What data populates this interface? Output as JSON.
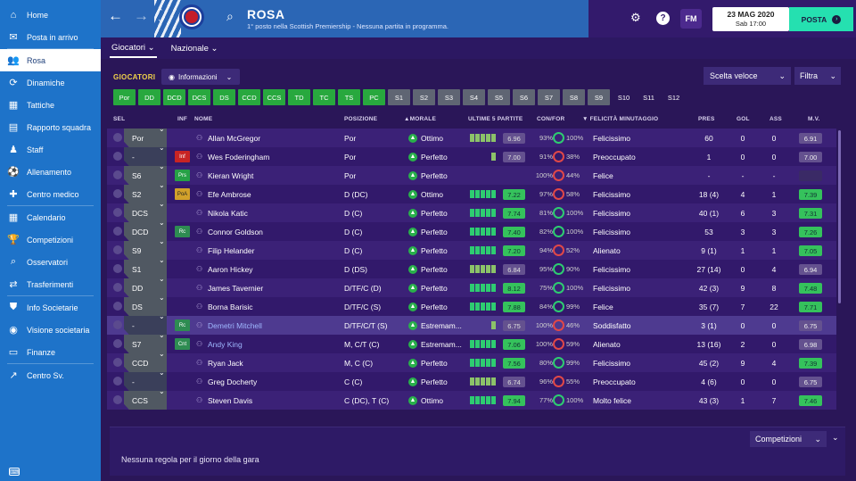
{
  "sidebar": {
    "items": [
      {
        "label": "Home",
        "icon": "home-icon",
        "glyph": "⌂"
      },
      {
        "label": "Posta in arrivo",
        "icon": "inbox-icon",
        "glyph": "✉"
      },
      {
        "label": "Rosa",
        "icon": "squad-icon",
        "glyph": "👥",
        "active": true
      },
      {
        "label": "Dinamiche",
        "icon": "dynamics-icon",
        "glyph": "⟳"
      },
      {
        "label": "Tattiche",
        "icon": "tactics-icon",
        "glyph": "▦"
      },
      {
        "label": "Rapporto squadra",
        "icon": "report-icon",
        "glyph": "▤"
      },
      {
        "label": "Staff",
        "icon": "staff-icon",
        "glyph": "♟"
      },
      {
        "label": "Allenamento",
        "icon": "training-icon",
        "glyph": "⚽"
      },
      {
        "label": "Centro medico",
        "icon": "medical-icon",
        "glyph": "✚"
      },
      {
        "label": "Calendario",
        "icon": "calendar-icon",
        "glyph": "▦"
      },
      {
        "label": "Competizioni",
        "icon": "trophy-icon",
        "glyph": "🏆"
      },
      {
        "label": "Osservatori",
        "icon": "scout-icon",
        "glyph": "⌕"
      },
      {
        "label": "Trasferimenti",
        "icon": "transfer-icon",
        "glyph": "⇄"
      },
      {
        "label": "Info Societarie",
        "icon": "club-info-icon",
        "glyph": "⛊"
      },
      {
        "label": "Visione societaria",
        "icon": "vision-icon",
        "glyph": "◉"
      },
      {
        "label": "Finanze",
        "icon": "finance-icon",
        "glyph": "▭"
      },
      {
        "label": "Centro Sv.",
        "icon": "dev-centre-icon",
        "glyph": "↗"
      }
    ]
  },
  "header": {
    "title": "ROSA",
    "subtitle": "1° posto nella Scottish Premiership - Nessuna partita in programma.",
    "date": "23 MAG 2020",
    "day": "Sab 17:00",
    "posta": "POSTA",
    "fm": "FM",
    "help": "?"
  },
  "tabs": [
    {
      "label": "Giocatori",
      "active": true
    },
    {
      "label": "Nazionale"
    }
  ],
  "filters": {
    "section": "GIOCATORI",
    "view": "Informazioni",
    "quick": "Scelta veloce",
    "filter": "Filtra"
  },
  "chips": [
    {
      "label": "Por",
      "c": "g"
    },
    {
      "label": "DD",
      "c": "g"
    },
    {
      "label": "DCD",
      "c": "g"
    },
    {
      "label": "DCS",
      "c": "g"
    },
    {
      "label": "DS",
      "c": "g"
    },
    {
      "label": "CCD",
      "c": "g"
    },
    {
      "label": "CCS",
      "c": "g"
    },
    {
      "label": "TD",
      "c": "g"
    },
    {
      "label": "TC",
      "c": "g"
    },
    {
      "label": "TS",
      "c": "g"
    },
    {
      "label": "PC",
      "c": "g"
    },
    {
      "label": "S1",
      "c": "s"
    },
    {
      "label": "S2",
      "c": "s"
    },
    {
      "label": "S3",
      "c": "s"
    },
    {
      "label": "S4",
      "c": "s"
    },
    {
      "label": "S5",
      "c": "s"
    },
    {
      "label": "S6",
      "c": "s"
    },
    {
      "label": "S7",
      "c": "s"
    },
    {
      "label": "S8",
      "c": "s"
    },
    {
      "label": "S9",
      "c": "s"
    },
    {
      "label": "S10",
      "c": "n"
    },
    {
      "label": "S11",
      "c": "n"
    },
    {
      "label": "S12",
      "c": "n"
    }
  ],
  "columns": {
    "sel": "SEL",
    "inf": "INF",
    "nome": "NOME",
    "posizione": "POSIZIONE",
    "morale": "▲MORALE",
    "ultime": "ULTIME 5 PARTITE",
    "confor": "CON/FOR",
    "felicita": "▼ FELICITÀ MINUTAGGIO",
    "pres": "PRES",
    "gol": "GOL",
    "ass": "ASS",
    "mv": "M.V."
  },
  "players": [
    {
      "sel": "Por",
      "inf": "",
      "infc": "",
      "name": "Allan McGregor",
      "pos": "Por",
      "morale": "Ottimo",
      "ult": "6.96",
      "ultc": "pu",
      "bars": 5,
      "con": "93%",
      "for": "100%",
      "forc": "",
      "fel": "Felicissimo",
      "pres": "60",
      "gol": "0",
      "ass": "0",
      "mv": "6.91",
      "mvc": "pu"
    },
    {
      "sel": "-",
      "inf": "Inf",
      "infc": "red",
      "name": "Wes Foderingham",
      "pos": "Por",
      "morale": "Perfetto",
      "ult": "7.00",
      "ultc": "pu",
      "bars": 1,
      "con": "91%",
      "for": "38%",
      "forc": "red",
      "fel": "Preoccupato",
      "pres": "1",
      "gol": "0",
      "ass": "0",
      "mv": "7.00",
      "mvc": "pu"
    },
    {
      "sel": "S6",
      "inf": "Prs",
      "infc": "grn",
      "name": "Kieran Wright",
      "pos": "Por",
      "morale": "Perfetto",
      "ult": "",
      "ultc": "",
      "bars": 0,
      "con": "100%",
      "for": "44%",
      "forc": "red",
      "fel": "Felice",
      "pres": "-",
      "gol": "-",
      "ass": "-",
      "mv": "",
      "mvc": "dk"
    },
    {
      "sel": "S2",
      "inf": "PoA",
      "infc": "yel",
      "name": "Efe Ambrose",
      "pos": "D (DC)",
      "morale": "Ottimo",
      "ult": "7.22",
      "ultc": "gr",
      "bars": 5,
      "con": "97%",
      "for": "58%",
      "forc": "red",
      "fel": "Felicissimo",
      "pres": "18 (4)",
      "gol": "4",
      "ass": "1",
      "mv": "7.39",
      "mvc": "gr"
    },
    {
      "sel": "DCS",
      "inf": "",
      "infc": "",
      "name": "Nikola Katic",
      "pos": "D (C)",
      "morale": "Perfetto",
      "ult": "7.74",
      "ultc": "gr",
      "bars": 5,
      "con": "81%",
      "for": "100%",
      "forc": "",
      "fel": "Felicissimo",
      "pres": "40 (1)",
      "gol": "6",
      "ass": "3",
      "mv": "7.31",
      "mvc": "gr"
    },
    {
      "sel": "DCD",
      "inf": "Rc",
      "infc": "grn2",
      "name": "Connor Goldson",
      "pos": "D (C)",
      "morale": "Perfetto",
      "ult": "7.40",
      "ultc": "gr",
      "bars": 5,
      "con": "82%",
      "for": "100%",
      "forc": "",
      "fel": "Felicissimo",
      "pres": "53",
      "gol": "3",
      "ass": "3",
      "mv": "7.26",
      "mvc": "gr"
    },
    {
      "sel": "S9",
      "inf": "",
      "infc": "",
      "name": "Filip Helander",
      "pos": "D (C)",
      "morale": "Perfetto",
      "ult": "7.20",
      "ultc": "gr",
      "bars": 5,
      "con": "94%",
      "for": "52%",
      "forc": "red",
      "fel": "Alienato",
      "pres": "9 (1)",
      "gol": "1",
      "ass": "1",
      "mv": "7.05",
      "mvc": "gr"
    },
    {
      "sel": "S1",
      "inf": "",
      "infc": "",
      "name": "Aaron Hickey",
      "pos": "D (DS)",
      "morale": "Perfetto",
      "ult": "6.84",
      "ultc": "pu",
      "bars": 5,
      "con": "95%",
      "for": "90%",
      "forc": "",
      "fel": "Felicissimo",
      "pres": "27 (14)",
      "gol": "0",
      "ass": "4",
      "mv": "6.94",
      "mvc": "pu"
    },
    {
      "sel": "DD",
      "inf": "",
      "infc": "",
      "name": "James Tavernier",
      "pos": "D/TF/C (D)",
      "morale": "Perfetto",
      "ult": "8.12",
      "ultc": "gr",
      "bars": 5,
      "con": "75%",
      "for": "100%",
      "forc": "",
      "fel": "Felicissimo",
      "pres": "42 (3)",
      "gol": "9",
      "ass": "8",
      "mv": "7.48",
      "mvc": "gr"
    },
    {
      "sel": "DS",
      "inf": "",
      "infc": "",
      "name": "Borna Barisic",
      "pos": "D/TF/C (S)",
      "morale": "Perfetto",
      "ult": "7.88",
      "ultc": "gr",
      "bars": 5,
      "con": "84%",
      "for": "99%",
      "forc": "",
      "fel": "Felice",
      "pres": "35 (7)",
      "gol": "7",
      "ass": "22",
      "mv": "7.71",
      "mvc": "gr"
    },
    {
      "sel": "-",
      "inf": "Rc",
      "infc": "grn2",
      "name": "Demetri Mitchell",
      "pos": "D/TF/C/T (S)",
      "morale": "Estremam...",
      "ult": "6.75",
      "ultc": "pu",
      "bars": 1,
      "con": "100%",
      "for": "46%",
      "forc": "red",
      "fel": "Soddisfatto",
      "pres": "3 (1)",
      "gol": "0",
      "ass": "0",
      "mv": "6.75",
      "mvc": "pu",
      "loan": true,
      "hl": true
    },
    {
      "sel": "S7",
      "inf": "Cnt",
      "infc": "grn2",
      "name": "Andy King",
      "pos": "M, C/T (C)",
      "morale": "Estremam...",
      "ult": "7.06",
      "ultc": "gr",
      "bars": 5,
      "con": "100%",
      "for": "59%",
      "forc": "red",
      "fel": "Alienato",
      "pres": "13 (16)",
      "gol": "2",
      "ass": "0",
      "mv": "6.98",
      "mvc": "pu",
      "loan": true
    },
    {
      "sel": "CCD",
      "inf": "",
      "infc": "",
      "name": "Ryan Jack",
      "pos": "M, C (C)",
      "morale": "Perfetto",
      "ult": "7.56",
      "ultc": "gr",
      "bars": 5,
      "con": "80%",
      "for": "99%",
      "forc": "",
      "fel": "Felicissimo",
      "pres": "45 (2)",
      "gol": "9",
      "ass": "4",
      "mv": "7.39",
      "mvc": "gr"
    },
    {
      "sel": "-",
      "inf": "",
      "infc": "",
      "name": "Greg Docherty",
      "pos": "C (C)",
      "morale": "Perfetto",
      "ult": "6.74",
      "ultc": "pu",
      "bars": 5,
      "con": "96%",
      "for": "55%",
      "forc": "red",
      "fel": "Preoccupato",
      "pres": "4 (6)",
      "gol": "0",
      "ass": "0",
      "mv": "6.75",
      "mvc": "pu"
    },
    {
      "sel": "CCS",
      "inf": "",
      "infc": "",
      "name": "Steven Davis",
      "pos": "C (DC), T (C)",
      "morale": "Ottimo",
      "ult": "7.94",
      "ultc": "gr",
      "bars": 5,
      "con": "77%",
      "for": "100%",
      "forc": "",
      "fel": "Molto felice",
      "pres": "43 (3)",
      "gol": "1",
      "ass": "7",
      "mv": "7.46",
      "mvc": "gr"
    }
  ],
  "bottom": {
    "competizioni": "Competizioni",
    "message": "Nessuna regola per il giorno della gara"
  }
}
